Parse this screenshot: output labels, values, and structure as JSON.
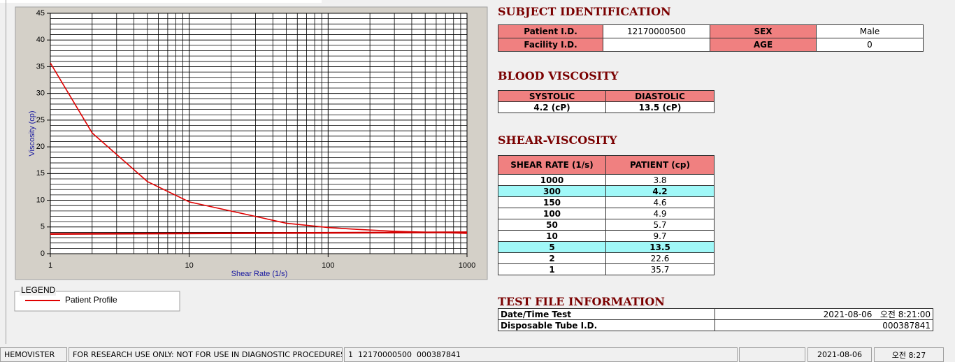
{
  "chart_data": {
    "type": "line",
    "xlabel": "Shear Rate (1/s)",
    "ylabel": "Viscosity (cp)",
    "xscale": "log",
    "xlim": [
      1,
      1000
    ],
    "xticks": [
      1,
      10,
      100,
      1000
    ],
    "ylim": [
      0,
      45
    ],
    "yticks": [
      0,
      5,
      10,
      15,
      20,
      25,
      30,
      35,
      40,
      45
    ],
    "grid": true,
    "minor_grid": true,
    "legend_title": "LEGEND",
    "series": [
      {
        "name": "Patient Profile",
        "color": "#e00000",
        "x": [
          1,
          2,
          5,
          10,
          50,
          100,
          150,
          300,
          1000
        ],
        "values": [
          35.7,
          22.6,
          13.5,
          9.7,
          5.7,
          4.9,
          4.6,
          4.2,
          3.8
        ]
      },
      {
        "color": "#d00000",
        "x": [
          1,
          1000
        ],
        "values": [
          3.7,
          4.0
        ]
      }
    ]
  },
  "subject_identification": {
    "title": "SUBJECT IDENTIFICATION",
    "rows": [
      [
        "Patient I.D.",
        "12170000500",
        "SEX",
        "Male"
      ],
      [
        "Facility I.D.",
        null,
        "AGE",
        0
      ]
    ]
  },
  "blood_viscosity": {
    "title": "BLOOD VISCOSITY",
    "headers": [
      "SYSTOLIC",
      "DIASTOLIC"
    ],
    "values": [
      "4.2 (cP)",
      "13.5 (cP)"
    ]
  },
  "shear_viscosity": {
    "title": "SHEAR-VISCOSITY",
    "headers": [
      "SHEAR RATE (1/s)",
      "PATIENT (cp)"
    ],
    "rows": [
      {
        "cells": [
          1000,
          3.8
        ],
        "highlight": false
      },
      {
        "cells": [
          300,
          4.2
        ],
        "highlight": true
      },
      {
        "cells": [
          150,
          4.6
        ],
        "highlight": false
      },
      {
        "cells": [
          100,
          4.9
        ],
        "highlight": false
      },
      {
        "cells": [
          50,
          5.7
        ],
        "highlight": false
      },
      {
        "cells": [
          10,
          9.7
        ],
        "highlight": false
      },
      {
        "cells": [
          5,
          13.5
        ],
        "highlight": true
      },
      {
        "cells": [
          2,
          22.6
        ],
        "highlight": false
      },
      {
        "cells": [
          1,
          35.7
        ],
        "highlight": false
      }
    ]
  },
  "test_file_information": {
    "title": "TEST FILE INFORMATION",
    "rows": [
      [
        "Date/Time Test",
        "2021-08-06   오전 8:21:00"
      ],
      [
        "Disposable Tube I.D.",
        "000387841"
      ]
    ]
  },
  "status_bar": [
    "HEMOVISTER",
    "FOR RESEARCH USE ONLY: NOT FOR USE IN DIAGNOSTIC PROCEDURES",
    "1  12170000500  000387841",
    "2021-08-06",
    "오전 8:27"
  ]
}
